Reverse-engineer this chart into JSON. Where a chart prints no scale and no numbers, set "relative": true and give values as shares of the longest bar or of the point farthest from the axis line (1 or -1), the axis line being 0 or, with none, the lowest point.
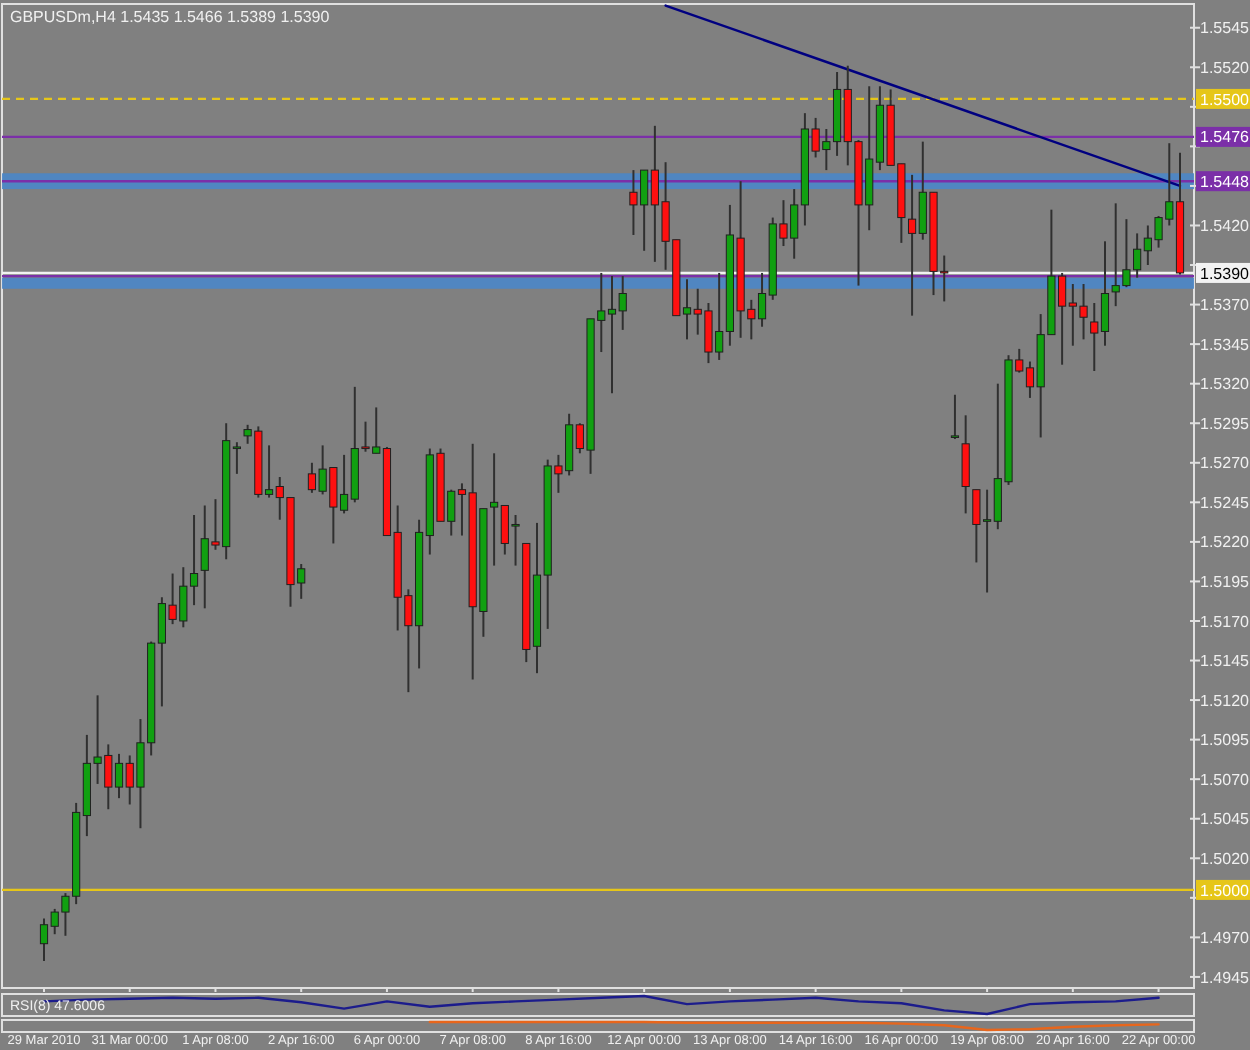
{
  "chart_data": [
    {
      "type": "candlestick",
      "title": "GBPUSDm,H4  1.5435 1.5466 1.5389 1.5390",
      "categories": [
        "29 Mar 2010",
        null,
        null,
        null,
        null,
        null,
        null,
        null,
        "31 Mar 00:00",
        null,
        null,
        null,
        null,
        null,
        null,
        null,
        "1 Apr 08:00",
        null,
        null,
        null,
        null,
        null,
        null,
        null,
        "2 Apr 16:00",
        null,
        null,
        null,
        null,
        null,
        null,
        null,
        "6 Apr 00:00",
        null,
        null,
        null,
        null,
        null,
        null,
        null,
        "7 Apr 08:00",
        null,
        null,
        null,
        null,
        null,
        null,
        null,
        "8 Apr 16:00",
        null,
        null,
        null,
        null,
        null,
        null,
        null,
        "12 Apr 00:00",
        null,
        null,
        null,
        null,
        null,
        null,
        null,
        "13 Apr 08:00",
        null,
        null,
        null,
        null,
        null,
        null,
        null,
        "14 Apr 16:00",
        null,
        null,
        null,
        null,
        null,
        null,
        null,
        "16 Apr 00:00",
        null,
        null,
        null,
        null,
        null,
        null,
        null,
        "19 Apr 08:00",
        null,
        null,
        null,
        null,
        null,
        null,
        null,
        "20 Apr 16:00",
        null,
        null,
        null,
        null,
        null,
        null,
        null,
        "22 Apr 00:00",
        null,
        null
      ],
      "ohlc": [
        [
          1.4966,
          1.4982,
          1.4955,
          1.4978
        ],
        [
          1.4977,
          1.4988,
          1.4972,
          1.4986
        ],
        [
          1.4986,
          1.4998,
          1.4971,
          1.4996
        ],
        [
          1.4996,
          1.5055,
          1.4991,
          1.5049
        ],
        [
          1.5047,
          1.5098,
          1.5034,
          1.508
        ],
        [
          1.508,
          1.5123,
          1.5067,
          1.5084
        ],
        [
          1.5085,
          1.5092,
          1.5051,
          1.5065
        ],
        [
          1.5065,
          1.5086,
          1.5058,
          1.508
        ],
        [
          1.508,
          1.5085,
          1.5054,
          1.5065
        ],
        [
          1.5065,
          1.5108,
          1.5039,
          1.5093
        ],
        [
          1.5093,
          1.5157,
          1.5085,
          1.5156
        ],
        [
          1.5156,
          1.5185,
          1.5116,
          1.5181
        ],
        [
          1.518,
          1.52,
          1.5168,
          1.5171
        ],
        [
          1.517,
          1.5204,
          1.5166,
          1.5192
        ],
        [
          1.5192,
          1.5237,
          1.518,
          1.52
        ],
        [
          1.5202,
          1.5243,
          1.5178,
          1.5222
        ],
        [
          1.522,
          1.5247,
          1.5215,
          1.5218
        ],
        [
          1.5217,
          1.5295,
          1.5209,
          1.5284
        ],
        [
          1.528,
          1.5283,
          1.5263,
          1.528
        ],
        [
          1.5287,
          1.5294,
          1.5282,
          1.5291
        ],
        [
          1.529,
          1.5293,
          1.5248,
          1.525
        ],
        [
          1.525,
          1.5281,
          1.5248,
          1.5253
        ],
        [
          1.5255,
          1.5261,
          1.5234,
          1.5248
        ],
        [
          1.5248,
          1.5248,
          1.5179,
          1.5193
        ],
        [
          1.5194,
          1.5206,
          1.5184,
          1.5203
        ],
        [
          1.5263,
          1.527,
          1.5251,
          1.5253
        ],
        [
          1.5252,
          1.5281,
          1.525,
          1.5266
        ],
        [
          1.5267,
          1.5267,
          1.5219,
          1.5242
        ],
        [
          1.524,
          1.5275,
          1.5238,
          1.525
        ],
        [
          1.5247,
          1.5318,
          1.5245,
          1.5279
        ],
        [
          1.528,
          1.5296,
          1.5277,
          1.5279
        ],
        [
          1.5276,
          1.5305,
          1.5276,
          1.528
        ],
        [
          1.5279,
          1.528,
          1.5224,
          1.5224
        ],
        [
          1.5226,
          1.5243,
          1.5164,
          1.5185
        ],
        [
          1.5186,
          1.519,
          1.5125,
          1.5167
        ],
        [
          1.5167,
          1.5234,
          1.514,
          1.5226
        ],
        [
          1.5224,
          1.5279,
          1.5212,
          1.5275
        ],
        [
          1.5276,
          1.5279,
          1.5233,
          1.5233
        ],
        [
          1.5233,
          1.5253,
          1.5224,
          1.5252
        ],
        [
          1.5253,
          1.5257,
          1.5224,
          1.525
        ],
        [
          1.5251,
          1.5282,
          1.5133,
          1.5179
        ],
        [
          1.5176,
          1.5241,
          1.516,
          1.5241
        ],
        [
          1.5242,
          1.5276,
          1.5205,
          1.5245
        ],
        [
          1.5243,
          1.5243,
          1.5212,
          1.5219
        ],
        [
          1.5231,
          1.5237,
          1.5205,
          1.5231
        ],
        [
          1.5219,
          1.5219,
          1.5144,
          1.5152
        ],
        [
          1.5154,
          1.5232,
          1.5137,
          1.5199
        ],
        [
          1.5199,
          1.5272,
          1.5165,
          1.5268
        ],
        [
          1.5268,
          1.5275,
          1.5251,
          1.5263
        ],
        [
          1.5265,
          1.5301,
          1.5262,
          1.5294
        ],
        [
          1.5294,
          1.5295,
          1.5276,
          1.5279
        ],
        [
          1.5278,
          1.5361,
          1.5263,
          1.5361
        ],
        [
          1.536,
          1.539,
          1.534,
          1.5366
        ],
        [
          1.5364,
          1.5388,
          1.5314,
          1.5367
        ],
        [
          1.5366,
          1.5388,
          1.5354,
          1.5377
        ],
        [
          1.5441,
          1.5455,
          1.5414,
          1.5433
        ],
        [
          1.5433,
          1.5455,
          1.5404,
          1.5455
        ],
        [
          1.5455,
          1.5483,
          1.5397,
          1.5433
        ],
        [
          1.5435,
          1.546,
          1.5392,
          1.541
        ],
        [
          1.5411,
          1.5411,
          1.5363,
          1.5363
        ],
        [
          1.5364,
          1.5386,
          1.5348,
          1.5368
        ],
        [
          1.5367,
          1.538,
          1.5351,
          1.5364
        ],
        [
          1.5366,
          1.5371,
          1.5333,
          1.534
        ],
        [
          1.534,
          1.539,
          1.5335,
          1.5353
        ],
        [
          1.5353,
          1.5433,
          1.5344,
          1.5414
        ],
        [
          1.5412,
          1.5448,
          1.5349,
          1.5366
        ],
        [
          1.5367,
          1.5373,
          1.5348,
          1.5361
        ],
        [
          1.5361,
          1.539,
          1.5356,
          1.5377
        ],
        [
          1.5376,
          1.5425,
          1.5373,
          1.5421
        ],
        [
          1.5421,
          1.5436,
          1.5407,
          1.5412
        ],
        [
          1.5412,
          1.5443,
          1.5399,
          1.5433
        ],
        [
          1.5433,
          1.5491,
          1.542,
          1.5481
        ],
        [
          1.5481,
          1.5488,
          1.5463,
          1.5467
        ],
        [
          1.5468,
          1.5481,
          1.5455,
          1.5473
        ],
        [
          1.5473,
          1.5517,
          1.5464,
          1.5506
        ],
        [
          1.5506,
          1.5521,
          1.5458,
          1.5473
        ],
        [
          1.5473,
          1.5474,
          1.5382,
          1.5433
        ],
        [
          1.5433,
          1.5508,
          1.5417,
          1.5462
        ],
        [
          1.546,
          1.5508,
          1.5455,
          1.5496
        ],
        [
          1.5496,
          1.5506,
          1.5458,
          1.5458
        ],
        [
          1.5459,
          1.5459,
          1.5409,
          1.5425
        ],
        [
          1.5424,
          1.5452,
          1.5363,
          1.5415
        ],
        [
          1.5415,
          1.5473,
          1.5411,
          1.5441
        ],
        [
          1.5441,
          1.5441,
          1.5376,
          1.5391
        ],
        [
          1.5391,
          1.5401,
          1.5372,
          1.539
        ],
        [
          1.5287,
          1.5313,
          1.5285,
          1.5287
        ],
        [
          1.5282,
          1.53,
          1.5238,
          1.5255
        ],
        [
          1.5253,
          1.5253,
          1.5207,
          1.5231
        ],
        [
          1.5233,
          1.5253,
          1.5188,
          1.5234
        ],
        [
          1.5233,
          1.532,
          1.5228,
          1.526
        ],
        [
          1.5258,
          1.5338,
          1.5256,
          1.5335
        ],
        [
          1.5335,
          1.5342,
          1.5327,
          1.5328
        ],
        [
          1.533,
          1.5334,
          1.5311,
          1.5318
        ],
        [
          1.5318,
          1.5364,
          1.5286,
          1.5351
        ],
        [
          1.5351,
          1.543,
          1.5351,
          1.5388
        ],
        [
          1.5388,
          1.539,
          1.5332,
          1.5369
        ],
        [
          1.5371,
          1.5383,
          1.5344,
          1.5369
        ],
        [
          1.5369,
          1.5383,
          1.5348,
          1.5362
        ],
        [
          1.5359,
          1.5371,
          1.5328,
          1.5352
        ],
        [
          1.5353,
          1.541,
          1.5344,
          1.5377
        ],
        [
          1.5378,
          1.5434,
          1.5369,
          1.5382
        ],
        [
          1.5382,
          1.5424,
          1.5381,
          1.5392
        ],
        [
          1.5392,
          1.5415,
          1.5387,
          1.5405
        ],
        [
          1.5404,
          1.542,
          1.5395,
          1.5412
        ],
        [
          1.5411,
          1.5426,
          1.5406,
          1.5425
        ],
        [
          1.5424,
          1.5472,
          1.542,
          1.5435
        ],
        [
          1.5435,
          1.5466,
          1.5389,
          1.539
        ]
      ],
      "series": [
        {
          "type": "line",
          "color": "#000080",
          "values": [
            null,
            null,
            null,
            null,
            null,
            null,
            null,
            null,
            null,
            null,
            null,
            null,
            null,
            null,
            null,
            null,
            null,
            null,
            null,
            null,
            null,
            null,
            null,
            null,
            null,
            null,
            null,
            null,
            null,
            null,
            null,
            null,
            null,
            null,
            null,
            null,
            null,
            null,
            null,
            null,
            null,
            null,
            null,
            null,
            null,
            null,
            null,
            null,
            null,
            null,
            null,
            null,
            null,
            null,
            null,
            null,
            null,
            null,
            1.5559,
            null,
            null,
            null,
            null,
            null,
            null,
            null,
            null,
            null,
            null,
            null,
            null,
            null,
            null,
            null,
            null,
            null,
            null,
            null,
            null,
            null,
            null,
            null,
            null,
            null,
            null,
            null,
            null,
            null,
            null,
            null,
            null,
            null,
            null,
            null,
            null,
            null,
            null,
            null,
            null,
            null,
            null,
            null,
            null,
            null,
            null,
            null,
            1.5445
          ]
        }
      ],
      "ylim": [
        1.4938,
        1.556
      ],
      "yticks": [
        1.4945,
        {
          "value": 1.497,
          "label": "1.4970"
        },
        {
          "value": 1.4995,
          "label": null
        },
        {
          "value": 1.502,
          "label": "1.5020"
        },
        1.5045,
        {
          "value": 1.507,
          "label": "1.5070"
        },
        1.5095,
        {
          "value": 1.512,
          "label": "1.5120"
        },
        1.5145,
        {
          "value": 1.517,
          "label": "1.5170"
        },
        1.5195,
        {
          "value": 1.522,
          "label": "1.5220"
        },
        1.5245,
        {
          "value": 1.527,
          "label": "1.5270"
        },
        1.5295,
        {
          "value": 1.532,
          "label": "1.5320"
        },
        1.5345,
        {
          "value": 1.537,
          "label": "1.5370"
        },
        {
          "value": 1.5395,
          "label": null
        },
        {
          "value": 1.542,
          "label": "1.5420"
        },
        {
          "value": 1.5445,
          "label": null
        },
        {
          "value": 1.547,
          "label": null
        },
        {
          "value": 1.5495,
          "label": null
        },
        {
          "value": 1.552,
          "label": "1.5520"
        },
        1.5545
      ],
      "bands": [
        {
          "axis": "y",
          "from": 1.5443,
          "to": 1.5453,
          "color": "#4a86c8"
        },
        {
          "axis": "y",
          "from": 1.538,
          "to": 1.5387,
          "color": "#4a86c8"
        }
      ],
      "ref_lines": [
        {
          "axis": "y",
          "value": 1.55,
          "label": "1.5500",
          "color": "#e6c619",
          "line_style": "dashed"
        },
        {
          "axis": "y",
          "value": 1.5476,
          "label": "1.5476",
          "color": "#7b2fa8",
          "line_style": "solid"
        },
        {
          "axis": "y",
          "value": 1.5448,
          "label": "1.5448",
          "color": "#7b2fa8",
          "line_style": "solid"
        },
        {
          "axis": "y",
          "value": 1.5388,
          "color": "#7b2fa8",
          "line_style": "solid"
        },
        {
          "axis": "y",
          "value": 1.539,
          "label": "1.5390",
          "color": "#f2f2f2",
          "line_style": "solid"
        },
        {
          "axis": "y",
          "value": 1.5,
          "label": "1.5000",
          "color": "#e6c619",
          "line_style": "solid"
        }
      ]
    },
    {
      "type": "line",
      "title": "RSI(8) 47.6006",
      "relative": true,
      "categories": [
        null,
        null,
        null,
        null,
        null,
        null,
        null,
        null,
        null,
        null,
        null,
        null,
        null,
        null,
        null,
        null,
        null,
        null,
        null,
        null,
        null,
        null,
        null,
        null,
        null,
        null,
        null
      ],
      "series": [
        {
          "color": "#1c1c8c",
          "values": [
            0.7,
            0.8,
            0.85,
            0.9,
            0.85,
            0.9,
            0.65,
            0.3,
            0.7,
            0.4,
            0.6,
            0.7,
            0.8,
            0.9,
            1,
            0.55,
            0.7,
            0.8,
            0.9,
            0.7,
            0.6,
            0.2,
            0,
            0.55,
            0.65,
            0.7,
            0.9
          ]
        }
      ]
    },
    {
      "type": "line",
      "relative": true,
      "categories": [
        null,
        null,
        null,
        null,
        null,
        null,
        null,
        null,
        null,
        null,
        null,
        null,
        null,
        null,
        null,
        null,
        null,
        null,
        null,
        null,
        null,
        null,
        null,
        null,
        null,
        null,
        null
      ],
      "series": [
        {
          "color": "#e8661c",
          "values": [
            null,
            null,
            null,
            null,
            null,
            null,
            null,
            null,
            null,
            1,
            1,
            1,
            1,
            1,
            1,
            0.9,
            0.9,
            0.9,
            0.9,
            0.9,
            0.8,
            0.6,
            0,
            0.1,
            0.4,
            0.6,
            0.7
          ]
        }
      ]
    }
  ]
}
